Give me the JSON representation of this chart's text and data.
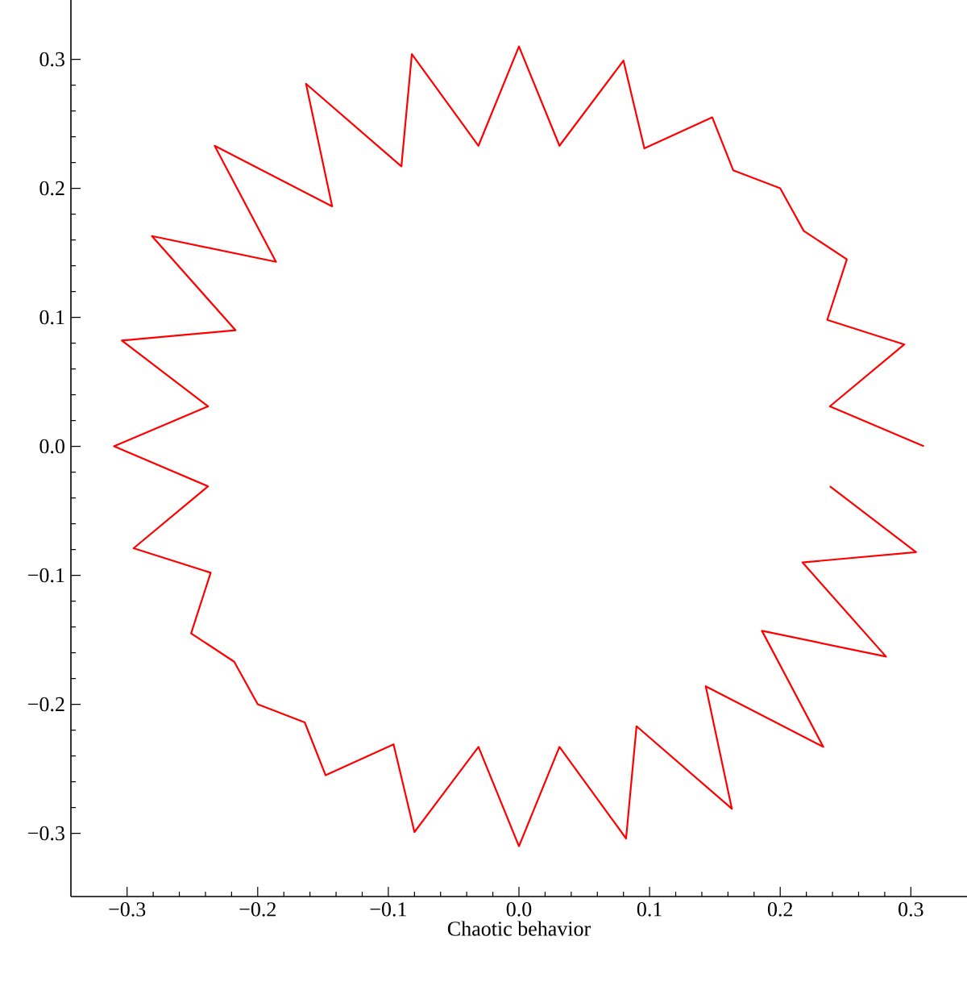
{
  "chart_data": {
    "type": "line",
    "xlabel": "Chaotic behavior",
    "xlim": [
      -0.343,
      0.343
    ],
    "ylim": [
      -0.349,
      0.346
    ],
    "xticks": [
      {
        "value": -0.3,
        "label": "−0.3"
      },
      {
        "value": -0.2,
        "label": "−0.2"
      },
      {
        "value": -0.1,
        "label": "−0.1"
      },
      {
        "value": 0,
        "label": "0.0"
      },
      0.1,
      0.2,
      0.3
    ],
    "yticks": [
      {
        "value": -0.3,
        "label": "−0.3"
      },
      {
        "value": -0.2,
        "label": "−0.2"
      },
      {
        "value": -0.1,
        "label": "−0.1"
      },
      {
        "value": 0,
        "label": "0.0"
      },
      0.1,
      0.2,
      0.3
    ],
    "grid": false,
    "marker": "none",
    "line_style": "solid",
    "series": [
      {
        "color": "#ff0000",
        "x": [
          0.31,
          0.238,
          0.295,
          0.236,
          0.251,
          0.218,
          0.2,
          0.164,
          0.148,
          0.096,
          0.08,
          0.031,
          0,
          -0.031,
          -0.082,
          -0.09,
          -0.163,
          -0.143,
          -0.233,
          -0.186,
          -0.281,
          -0.217,
          -0.304,
          -0.238,
          -0.31,
          -0.238,
          -0.295,
          -0.236,
          -0.251,
          -0.218,
          -0.2,
          -0.164,
          -0.148,
          -0.096,
          -0.08,
          -0.031,
          0,
          0.031,
          0.082,
          0.09,
          0.163,
          0.143,
          0.233,
          0.186,
          0.281,
          0.217,
          0.304,
          0.238
        ],
        "values": [
          0,
          0.031,
          0.079,
          0.098,
          0.145,
          0.167,
          0.2,
          0.214,
          0.255,
          0.231,
          0.299,
          0.233,
          0.31,
          0.233,
          0.304,
          0.217,
          0.281,
          0.186,
          0.233,
          0.143,
          0.163,
          0.09,
          0.082,
          0.031,
          0,
          -0.031,
          -0.079,
          -0.098,
          -0.145,
          -0.167,
          -0.2,
          -0.214,
          -0.255,
          -0.231,
          -0.299,
          -0.233,
          -0.31,
          -0.233,
          -0.304,
          -0.217,
          -0.281,
          -0.186,
          -0.233,
          -0.143,
          -0.163,
          -0.09,
          -0.082,
          -0.031
        ]
      }
    ]
  }
}
